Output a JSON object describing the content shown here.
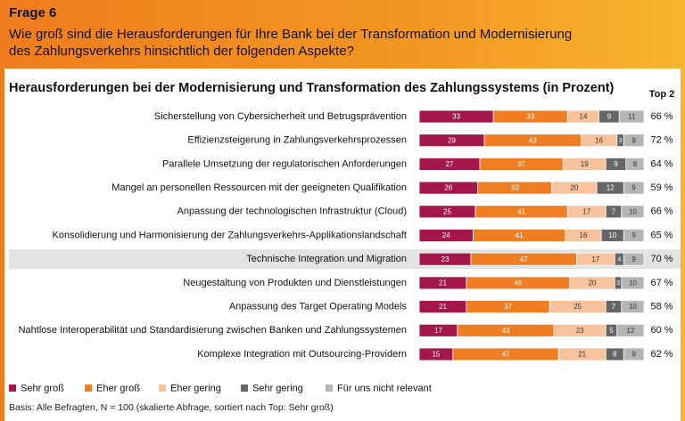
{
  "header": {
    "title": "Frage 6",
    "question": [
      "Wie groß sind die Herausforderungen für Ihre Bank bei der Transformation und Modernisierung",
      "des Zahlungsverkehrs hinsichtlich der folgenden Aspekte?"
    ]
  },
  "chart_data": {
    "type": "bar",
    "orientation": "horizontal",
    "stacked": true,
    "title": "Herausforderungen bei der Modernisierung und Transformation des Zahlungssystems (in Prozent)",
    "categories": [
      "Sicherstellung von Cybersicherheit und Betrugsprävention",
      "Effizienzsteigerung in Zahlungsverkehrsprozessen",
      "Parallele Umsetzung der regulatorischen Anforderungen",
      "Mangel an personellen Ressourcen mit der geeigneten Qualifikation",
      "Anpassung der technologischen Infrastruktur (Cloud)",
      "Konsolidierung und Harmonisierung der Zahlungsverkehrs-Applikationslandschaft",
      "Technische Integration und Migration",
      "Neugestaltung von Produkten und Dienstleistungen",
      "Anpassung des Target Operating Models",
      "Nahtlose Interoperabilität und Standardisierung zwischen Banken und Zahlungssystemen",
      "Komplexe Integration mit Outsourcing-Providern"
    ],
    "highlight_index": 6,
    "xlim": [
      0,
      100
    ],
    "series": [
      {
        "name": "Sehr groß",
        "color": "#a3174a",
        "values": [
          33,
          29,
          27,
          26,
          25,
          24,
          23,
          21,
          21,
          17,
          15
        ]
      },
      {
        "name": "Eher groß",
        "color": "#ee7d24",
        "values": [
          33,
          43,
          37,
          33,
          41,
          41,
          47,
          46,
          37,
          43,
          47
        ]
      },
      {
        "name": "Eher gering",
        "color": "#f8c29c",
        "values": [
          14,
          16,
          19,
          20,
          17,
          16,
          17,
          20,
          25,
          23,
          21
        ]
      },
      {
        "name": "Sehr gering",
        "color": "#666666",
        "values": [
          9,
          3,
          9,
          12,
          7,
          10,
          4,
          3,
          7,
          5,
          8
        ]
      },
      {
        "name": "Für uns nicht relevant",
        "color": "#b5b5b5",
        "values": [
          11,
          9,
          8,
          9,
          10,
          9,
          9,
          10,
          10,
          12,
          9
        ]
      }
    ],
    "top2": {
      "title": "Top 2",
      "values": [
        66,
        72,
        64,
        59,
        66,
        65,
        70,
        67,
        58,
        60,
        62
      ],
      "value_labels": [
        "66 %",
        "72 %",
        "64 %",
        "59 %",
        "66 %",
        "65 %",
        "70 %",
        "67 %",
        "58 %",
        "60 %",
        "62 %"
      ]
    },
    "note": "Basis: Alle Befragten, N = 100 (skalierte Abfrage, sortiert nach Top: Sehr groß)"
  }
}
